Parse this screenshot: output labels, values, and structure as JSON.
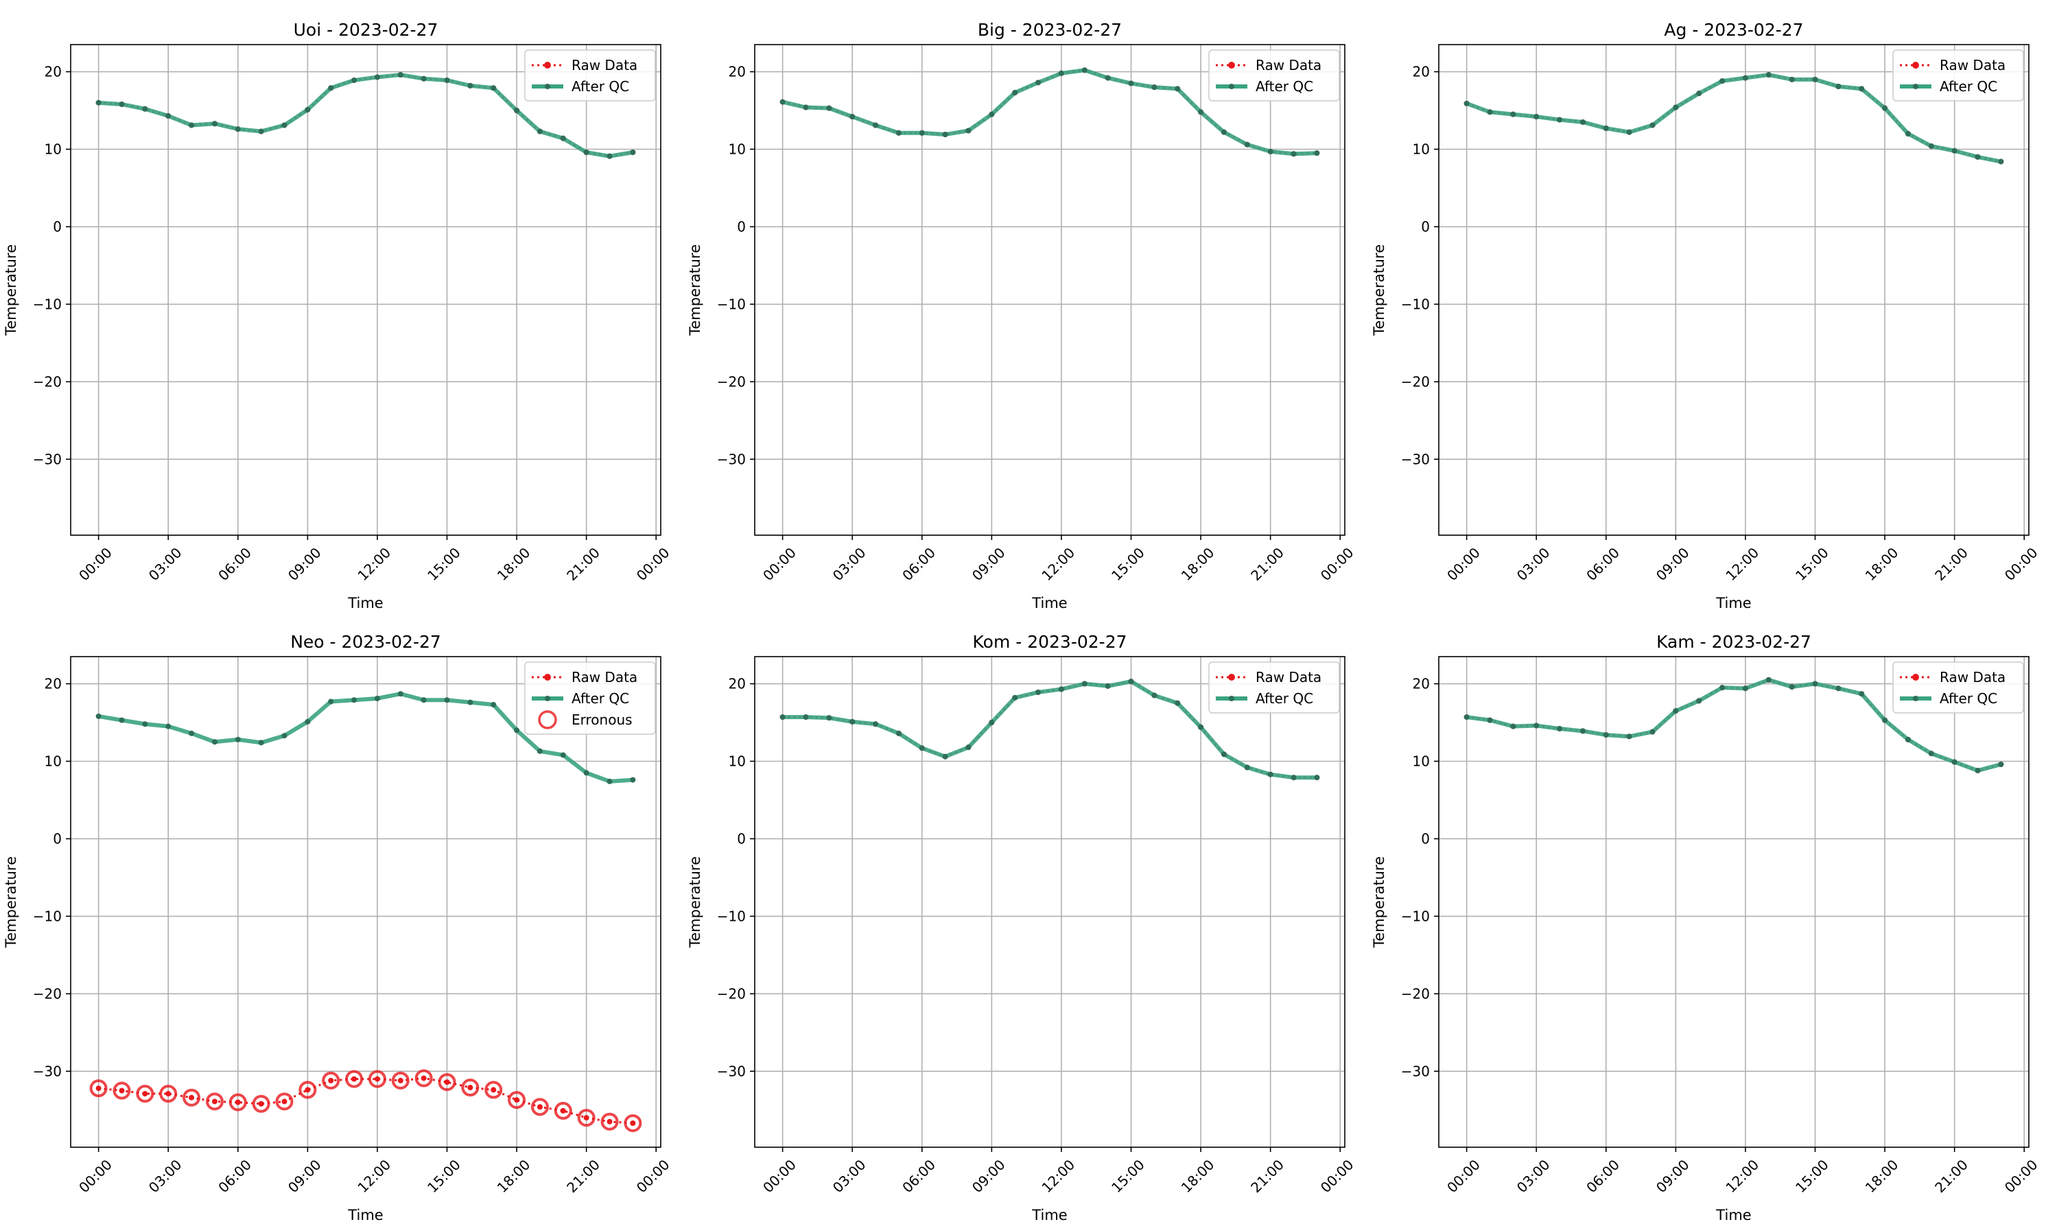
{
  "figure": {
    "legend_position": "upper right",
    "grid": true,
    "colors": {
      "raw": "#e8171c",
      "qc": "#3aa381",
      "qc_marker": "#2e6f58",
      "erroneous": "#e8171c"
    }
  },
  "chart_data": [
    {
      "type": "line",
      "title": "Uoi - 2023-02-27",
      "xlabel": "Time",
      "ylabel": "Temperature",
      "x_tick_labels": [
        "00:00",
        "03:00",
        "06:00",
        "09:00",
        "12:00",
        "15:00",
        "18:00",
        "21:00",
        "00:00"
      ],
      "xlim_hours": [
        -1.2,
        24.2
      ],
      "y_ticks": [
        20,
        10,
        0,
        -10,
        -20,
        -30
      ],
      "y_tick_labels": [
        "20",
        "10",
        "0",
        "−10",
        "−20",
        "−30"
      ],
      "ylim": [
        -39.8,
        23.5
      ],
      "legend": [
        "Raw Data",
        "After QC"
      ],
      "x_hours": [
        0,
        1,
        2,
        3,
        4,
        5,
        6,
        7,
        8,
        9,
        10,
        11,
        12,
        13,
        14,
        15,
        16,
        17,
        18,
        19,
        20,
        21,
        22,
        23
      ],
      "series": [
        {
          "name": "Raw Data",
          "values": [
            16.0,
            15.8,
            15.2,
            14.3,
            13.1,
            13.3,
            12.6,
            12.3,
            13.1,
            15.1,
            17.9,
            18.9,
            19.3,
            19.6,
            19.1,
            18.9,
            18.2,
            17.9,
            15.0,
            12.3,
            11.4,
            9.6,
            9.1,
            9.6
          ]
        },
        {
          "name": "After QC",
          "values": [
            16.0,
            15.8,
            15.2,
            14.3,
            13.1,
            13.3,
            12.6,
            12.3,
            13.1,
            15.1,
            17.9,
            18.9,
            19.3,
            19.6,
            19.1,
            18.9,
            18.2,
            17.9,
            15.0,
            12.3,
            11.4,
            9.6,
            9.1,
            9.6
          ]
        }
      ]
    },
    {
      "type": "line",
      "title": "Big - 2023-02-27",
      "xlabel": "Time",
      "ylabel": "Temperature",
      "x_tick_labels": [
        "00:00",
        "03:00",
        "06:00",
        "09:00",
        "12:00",
        "15:00",
        "18:00",
        "21:00",
        "00:00"
      ],
      "xlim_hours": [
        -1.2,
        24.2
      ],
      "y_ticks": [
        20,
        10,
        0,
        -10,
        -20,
        -30
      ],
      "y_tick_labels": [
        "20",
        "10",
        "0",
        "−10",
        "−20",
        "−30"
      ],
      "ylim": [
        -39.8,
        23.5
      ],
      "legend": [
        "Raw Data",
        "After QC"
      ],
      "x_hours": [
        0,
        1,
        2,
        3,
        4,
        5,
        6,
        7,
        8,
        9,
        10,
        11,
        12,
        13,
        14,
        15,
        16,
        17,
        18,
        19,
        20,
        21,
        22,
        23
      ],
      "series": [
        {
          "name": "Raw Data",
          "values": [
            16.1,
            15.4,
            15.3,
            14.2,
            13.1,
            12.1,
            12.1,
            11.9,
            12.4,
            14.5,
            17.3,
            18.6,
            19.8,
            20.2,
            19.2,
            18.5,
            18.0,
            17.8,
            14.8,
            12.2,
            10.6,
            9.7,
            9.4,
            9.5
          ]
        },
        {
          "name": "After QC",
          "values": [
            16.1,
            15.4,
            15.3,
            14.2,
            13.1,
            12.1,
            12.1,
            11.9,
            12.4,
            14.5,
            17.3,
            18.6,
            19.8,
            20.2,
            19.2,
            18.5,
            18.0,
            17.8,
            14.8,
            12.2,
            10.6,
            9.7,
            9.4,
            9.5
          ]
        }
      ]
    },
    {
      "type": "line",
      "title": "Ag - 2023-02-27",
      "xlabel": "Time",
      "ylabel": "Temperature",
      "x_tick_labels": [
        "00:00",
        "03:00",
        "06:00",
        "09:00",
        "12:00",
        "15:00",
        "18:00",
        "21:00",
        "00:00"
      ],
      "xlim_hours": [
        -1.2,
        24.2
      ],
      "y_ticks": [
        20,
        10,
        0,
        -10,
        -20,
        -30
      ],
      "y_tick_labels": [
        "20",
        "10",
        "0",
        "−10",
        "−20",
        "−30"
      ],
      "ylim": [
        -39.8,
        23.5
      ],
      "legend": [
        "Raw Data",
        "After QC"
      ],
      "x_hours": [
        0,
        1,
        2,
        3,
        4,
        5,
        6,
        7,
        8,
        9,
        10,
        11,
        12,
        13,
        14,
        15,
        16,
        17,
        18,
        19,
        20,
        21,
        22,
        23
      ],
      "series": [
        {
          "name": "Raw Data",
          "values": [
            15.9,
            14.8,
            14.5,
            14.2,
            13.8,
            13.5,
            12.7,
            12.2,
            13.1,
            15.4,
            17.2,
            18.8,
            19.2,
            19.6,
            19.0,
            19.0,
            18.1,
            17.8,
            15.3,
            12.0,
            10.4,
            9.8,
            9.0,
            8.4
          ]
        },
        {
          "name": "After QC",
          "values": [
            15.9,
            14.8,
            14.5,
            14.2,
            13.8,
            13.5,
            12.7,
            12.2,
            13.1,
            15.4,
            17.2,
            18.8,
            19.2,
            19.6,
            19.0,
            19.0,
            18.1,
            17.8,
            15.3,
            12.0,
            10.4,
            9.8,
            9.0,
            8.4
          ]
        }
      ]
    },
    {
      "type": "line",
      "title": "Neo - 2023-02-27",
      "xlabel": "Time",
      "ylabel": "Temperature",
      "x_tick_labels": [
        "00:00",
        "03:00",
        "06:00",
        "09:00",
        "12:00",
        "15:00",
        "18:00",
        "21:00",
        "00:00"
      ],
      "xlim_hours": [
        -1.2,
        24.2
      ],
      "y_ticks": [
        20,
        10,
        0,
        -10,
        -20,
        -30
      ],
      "y_tick_labels": [
        "20",
        "10",
        "0",
        "−10",
        "−20",
        "−30"
      ],
      "ylim": [
        -39.8,
        23.5
      ],
      "legend": [
        "Raw Data",
        "After QC",
        "Erronous"
      ],
      "x_hours": [
        0,
        1,
        2,
        3,
        4,
        5,
        6,
        7,
        8,
        9,
        10,
        11,
        12,
        13,
        14,
        15,
        16,
        17,
        18,
        19,
        20,
        21,
        22,
        23
      ],
      "series": [
        {
          "name": "Raw Data",
          "values": [
            -32.2,
            -32.5,
            -32.9,
            -32.9,
            -33.4,
            -33.9,
            -34.0,
            -34.2,
            -33.9,
            -32.4,
            -31.2,
            -31.0,
            -31.0,
            -31.2,
            -30.9,
            -31.4,
            -32.1,
            -32.4,
            -33.7,
            -34.6,
            -35.1,
            -36.0,
            -36.5,
            -36.7
          ]
        },
        {
          "name": "After QC",
          "values": [
            15.8,
            15.3,
            14.8,
            14.5,
            13.6,
            12.5,
            12.8,
            12.4,
            13.3,
            15.1,
            17.7,
            17.9,
            18.1,
            18.7,
            17.9,
            17.9,
            17.6,
            17.3,
            14.0,
            11.3,
            10.8,
            8.5,
            7.4,
            7.6
          ]
        },
        {
          "name": "Erronous",
          "values": [
            -32.2,
            -32.5,
            -32.9,
            -32.9,
            -33.4,
            -33.9,
            -34.0,
            -34.2,
            -33.9,
            -32.4,
            -31.2,
            -31.0,
            -31.0,
            -31.2,
            -30.9,
            -31.4,
            -32.1,
            -32.4,
            -33.7,
            -34.6,
            -35.1,
            -36.0,
            -36.5,
            -36.7
          ]
        }
      ]
    },
    {
      "type": "line",
      "title": "Kom - 2023-02-27",
      "xlabel": "Time",
      "ylabel": "Temperature",
      "x_tick_labels": [
        "00:00",
        "03:00",
        "06:00",
        "09:00",
        "12:00",
        "15:00",
        "18:00",
        "21:00",
        "00:00"
      ],
      "xlim_hours": [
        -1.2,
        24.2
      ],
      "y_ticks": [
        20,
        10,
        0,
        -10,
        -20,
        -30
      ],
      "y_tick_labels": [
        "20",
        "10",
        "0",
        "−10",
        "−20",
        "−30"
      ],
      "ylim": [
        -39.8,
        23.5
      ],
      "legend": [
        "Raw Data",
        "After QC"
      ],
      "x_hours": [
        0,
        1,
        2,
        3,
        4,
        5,
        6,
        7,
        8,
        9,
        10,
        11,
        12,
        13,
        14,
        15,
        16,
        17,
        18,
        19,
        20,
        21,
        22,
        23
      ],
      "series": [
        {
          "name": "Raw Data",
          "values": [
            15.7,
            15.7,
            15.6,
            15.1,
            14.8,
            13.6,
            11.7,
            10.6,
            11.8,
            15.0,
            18.2,
            18.9,
            19.3,
            20.0,
            19.7,
            20.3,
            18.5,
            17.5,
            14.4,
            10.9,
            9.2,
            8.3,
            7.9,
            7.9
          ]
        },
        {
          "name": "After QC",
          "values": [
            15.7,
            15.7,
            15.6,
            15.1,
            14.8,
            13.6,
            11.7,
            10.6,
            11.8,
            15.0,
            18.2,
            18.9,
            19.3,
            20.0,
            19.7,
            20.3,
            18.5,
            17.5,
            14.4,
            10.9,
            9.2,
            8.3,
            7.9,
            7.9
          ]
        }
      ]
    },
    {
      "type": "line",
      "title": "Kam - 2023-02-27",
      "xlabel": "Time",
      "ylabel": "Temperature",
      "x_tick_labels": [
        "00:00",
        "03:00",
        "06:00",
        "09:00",
        "12:00",
        "15:00",
        "18:00",
        "21:00",
        "00:00"
      ],
      "xlim_hours": [
        -1.2,
        24.2
      ],
      "y_ticks": [
        20,
        10,
        0,
        -10,
        -20,
        -30
      ],
      "y_tick_labels": [
        "20",
        "10",
        "0",
        "−10",
        "−20",
        "−30"
      ],
      "ylim": [
        -39.8,
        23.5
      ],
      "legend": [
        "Raw Data",
        "After QC"
      ],
      "x_hours": [
        0,
        1,
        2,
        3,
        4,
        5,
        6,
        7,
        8,
        9,
        10,
        11,
        12,
        13,
        14,
        15,
        16,
        17,
        18,
        19,
        20,
        21,
        22,
        23
      ],
      "series": [
        {
          "name": "Raw Data",
          "values": [
            15.7,
            15.3,
            14.5,
            14.6,
            14.2,
            13.9,
            13.4,
            13.2,
            13.8,
            16.5,
            17.8,
            19.5,
            19.4,
            20.5,
            19.6,
            20.0,
            19.4,
            18.7,
            15.3,
            12.8,
            11.0,
            9.9,
            8.8,
            9.6
          ]
        },
        {
          "name": "After QC",
          "values": [
            15.7,
            15.3,
            14.5,
            14.6,
            14.2,
            13.9,
            13.4,
            13.2,
            13.8,
            16.5,
            17.8,
            19.5,
            19.4,
            20.5,
            19.6,
            20.0,
            19.4,
            18.7,
            15.3,
            12.8,
            11.0,
            9.9,
            8.8,
            9.6
          ]
        }
      ]
    }
  ]
}
